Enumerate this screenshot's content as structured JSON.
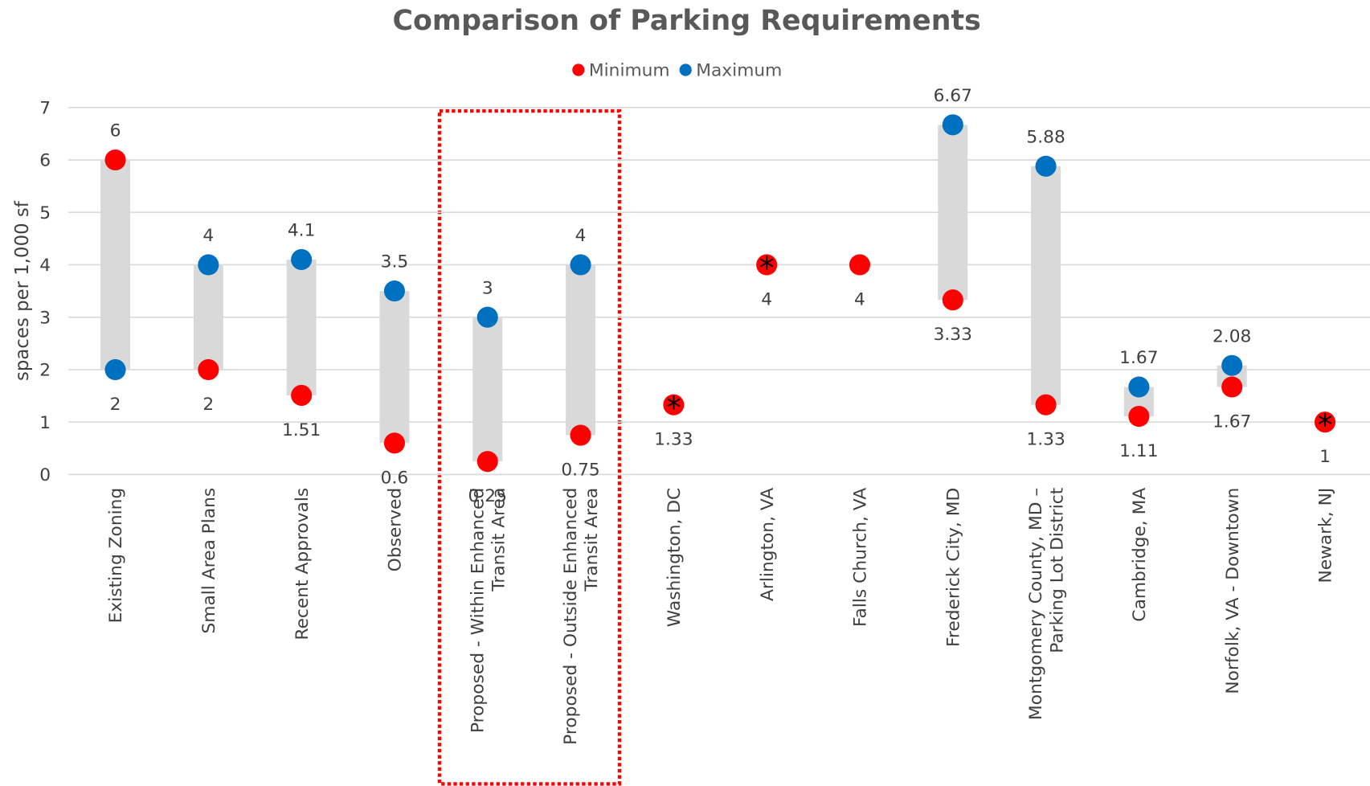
{
  "chart_data": {
    "type": "dot-range",
    "title": "Comparison of Parking Requirements",
    "y_label": "spaces per 1,000 sf",
    "categories": [
      "Existing Zoning",
      "Small Area Plans",
      "Recent Approvals",
      "Observed",
      "Proposed - Within Enhanced\nTransit Area",
      "Proposed - Outside Enhanced\nTransit Area",
      "Washington, DC",
      "Arlington, VA",
      "Falls Church, VA",
      "Frederick City, MD",
      "Montgomery County, MD –\nParking Lot District",
      "Cambridge, MA",
      "Norfolk, VA - Downtown",
      "Newark, NJ"
    ],
    "series": [
      {
        "name": "Minimum",
        "color": "#ff0000",
        "values": [
          6,
          2,
          1.51,
          0.6,
          0.25,
          0.75,
          1.33,
          4,
          4,
          3.33,
          1.33,
          1.11,
          1.67,
          1
        ]
      },
      {
        "name": "Maximum",
        "color": "#0070c0",
        "values": [
          2,
          4,
          4.1,
          3.5,
          3,
          4,
          null,
          null,
          null,
          6.67,
          5.88,
          1.67,
          2.08,
          null
        ]
      }
    ],
    "asterisk": {
      "label": "*",
      "categories": [
        "Washington, DC",
        "Arlington, VA",
        "Newark, NJ"
      ]
    },
    "range_color": "#d9d9d9",
    "ylim": [
      0,
      7
    ],
    "yticks": [
      0,
      1,
      2,
      3,
      4,
      5,
      6,
      7
    ],
    "grid": true,
    "legend": "top"
  }
}
